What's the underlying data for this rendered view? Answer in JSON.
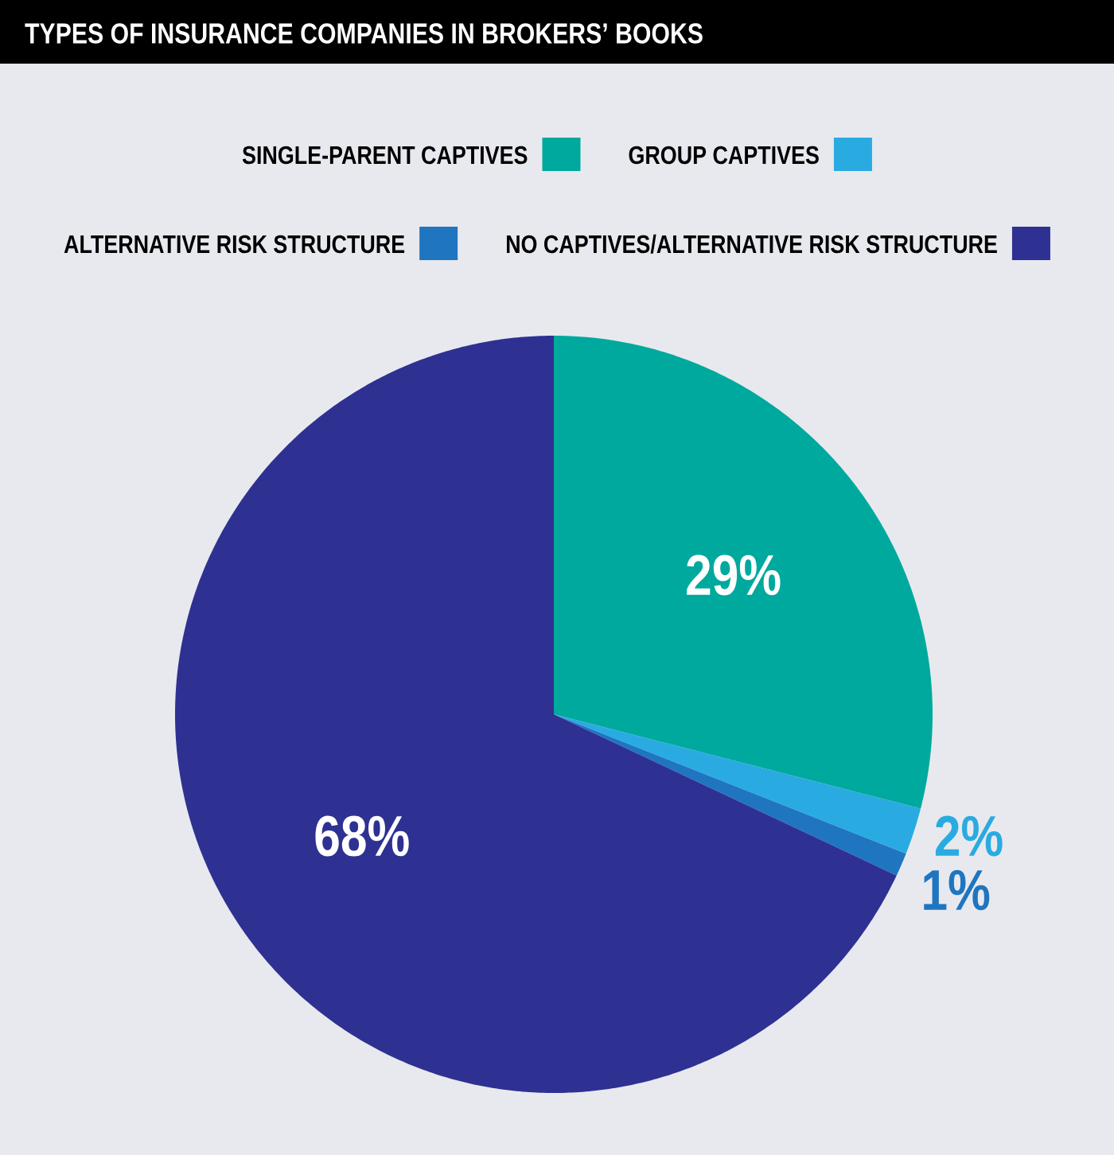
{
  "chart_data": {
    "type": "pie",
    "title": "TYPES OF INSURANCE COMPANIES IN BROKERS’ BOOKS",
    "categories": [
      "SINGLE-PARENT CAPTIVES",
      "GROUP CAPTIVES",
      "ALTERNATIVE RISK STRUCTURE",
      "NO CAPTIVES/ALTERNATIVE RISK STRUCTURE"
    ],
    "values": [
      29,
      2,
      1,
      68
    ],
    "colors": [
      "#00a99d",
      "#29abe2",
      "#1f75c0",
      "#2e3192"
    ],
    "value_labels": [
      "29%",
      "2%",
      "1%",
      "68%"
    ],
    "legend": "top"
  }
}
